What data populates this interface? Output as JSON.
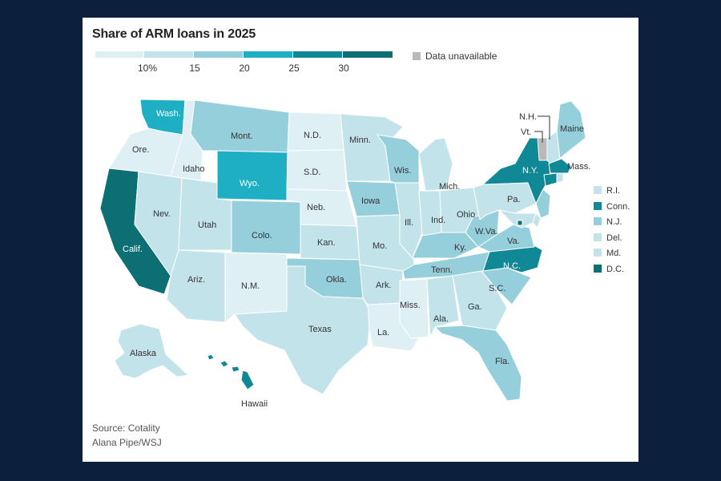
{
  "title": "Share of ARM loans in 2025",
  "scale": {
    "colors": [
      "#dff0f4",
      "#c3e3ea",
      "#96cfdc",
      "#1fafc4",
      "#118896",
      "#0b6f73"
    ],
    "ticks": [
      "10%",
      "15",
      "20",
      "25",
      "30"
    ],
    "unavailable_label": "Data unavailable",
    "unavailable_color": "#b9b9b9"
  },
  "states": [
    {
      "name": "Wash.",
      "bin": 4
    },
    {
      "name": "Ore.",
      "bin": 1
    },
    {
      "name": "Calif.",
      "bin": 6
    },
    {
      "name": "Idaho",
      "bin": 1
    },
    {
      "name": "Nev.",
      "bin": 2
    },
    {
      "name": "Mont.",
      "bin": 3
    },
    {
      "name": "Wyo.",
      "bin": 4
    },
    {
      "name": "Utah",
      "bin": 2
    },
    {
      "name": "Colo.",
      "bin": 3
    },
    {
      "name": "Ariz.",
      "bin": 2
    },
    {
      "name": "N.M.",
      "bin": 1
    },
    {
      "name": "N.D.",
      "bin": 1
    },
    {
      "name": "S.D.",
      "bin": 1
    },
    {
      "name": "Neb.",
      "bin": 1
    },
    {
      "name": "Kan.",
      "bin": 2
    },
    {
      "name": "Okla.",
      "bin": 3
    },
    {
      "name": "Texas",
      "bin": 2
    },
    {
      "name": "Minn.",
      "bin": 2
    },
    {
      "name": "Iowa",
      "bin": 3
    },
    {
      "name": "Mo.",
      "bin": 2
    },
    {
      "name": "Ark.",
      "bin": 2
    },
    {
      "name": "La.",
      "bin": 1
    },
    {
      "name": "Wis.",
      "bin": 3
    },
    {
      "name": "Ill.",
      "bin": 2
    },
    {
      "name": "Mich.",
      "bin": 2
    },
    {
      "name": "Ind.",
      "bin": 2
    },
    {
      "name": "Ohio",
      "bin": 2
    },
    {
      "name": "Ky.",
      "bin": 3
    },
    {
      "name": "Tenn.",
      "bin": 3
    },
    {
      "name": "Miss.",
      "bin": 1
    },
    {
      "name": "Ala.",
      "bin": 2
    },
    {
      "name": "Ga.",
      "bin": 2
    },
    {
      "name": "Fla.",
      "bin": 3
    },
    {
      "name": "S.C.",
      "bin": 3
    },
    {
      "name": "N.C.",
      "bin": 5
    },
    {
      "name": "Va.",
      "bin": 3
    },
    {
      "name": "W.Va.",
      "bin": 3
    },
    {
      "name": "Pa.",
      "bin": 2
    },
    {
      "name": "N.Y.",
      "bin": 5
    },
    {
      "name": "Maine",
      "bin": 3
    },
    {
      "name": "N.H.",
      "bin": 2
    },
    {
      "name": "Vt.",
      "bin": 0
    },
    {
      "name": "Mass.",
      "bin": 5
    },
    {
      "name": "Alaska",
      "bin": 2
    },
    {
      "name": "Hawaii",
      "bin": 5
    }
  ],
  "small_states": [
    {
      "name": "R.I.",
      "bin": 2
    },
    {
      "name": "Conn.",
      "bin": 5
    },
    {
      "name": "N.J.",
      "bin": 3
    },
    {
      "name": "Del.",
      "bin": 2
    },
    {
      "name": "Md.",
      "bin": 2
    },
    {
      "name": "D.C.",
      "bin": 6
    }
  ],
  "source": {
    "line1": "Source: Cotality",
    "line2": "Alana Pipe/WSJ"
  }
}
